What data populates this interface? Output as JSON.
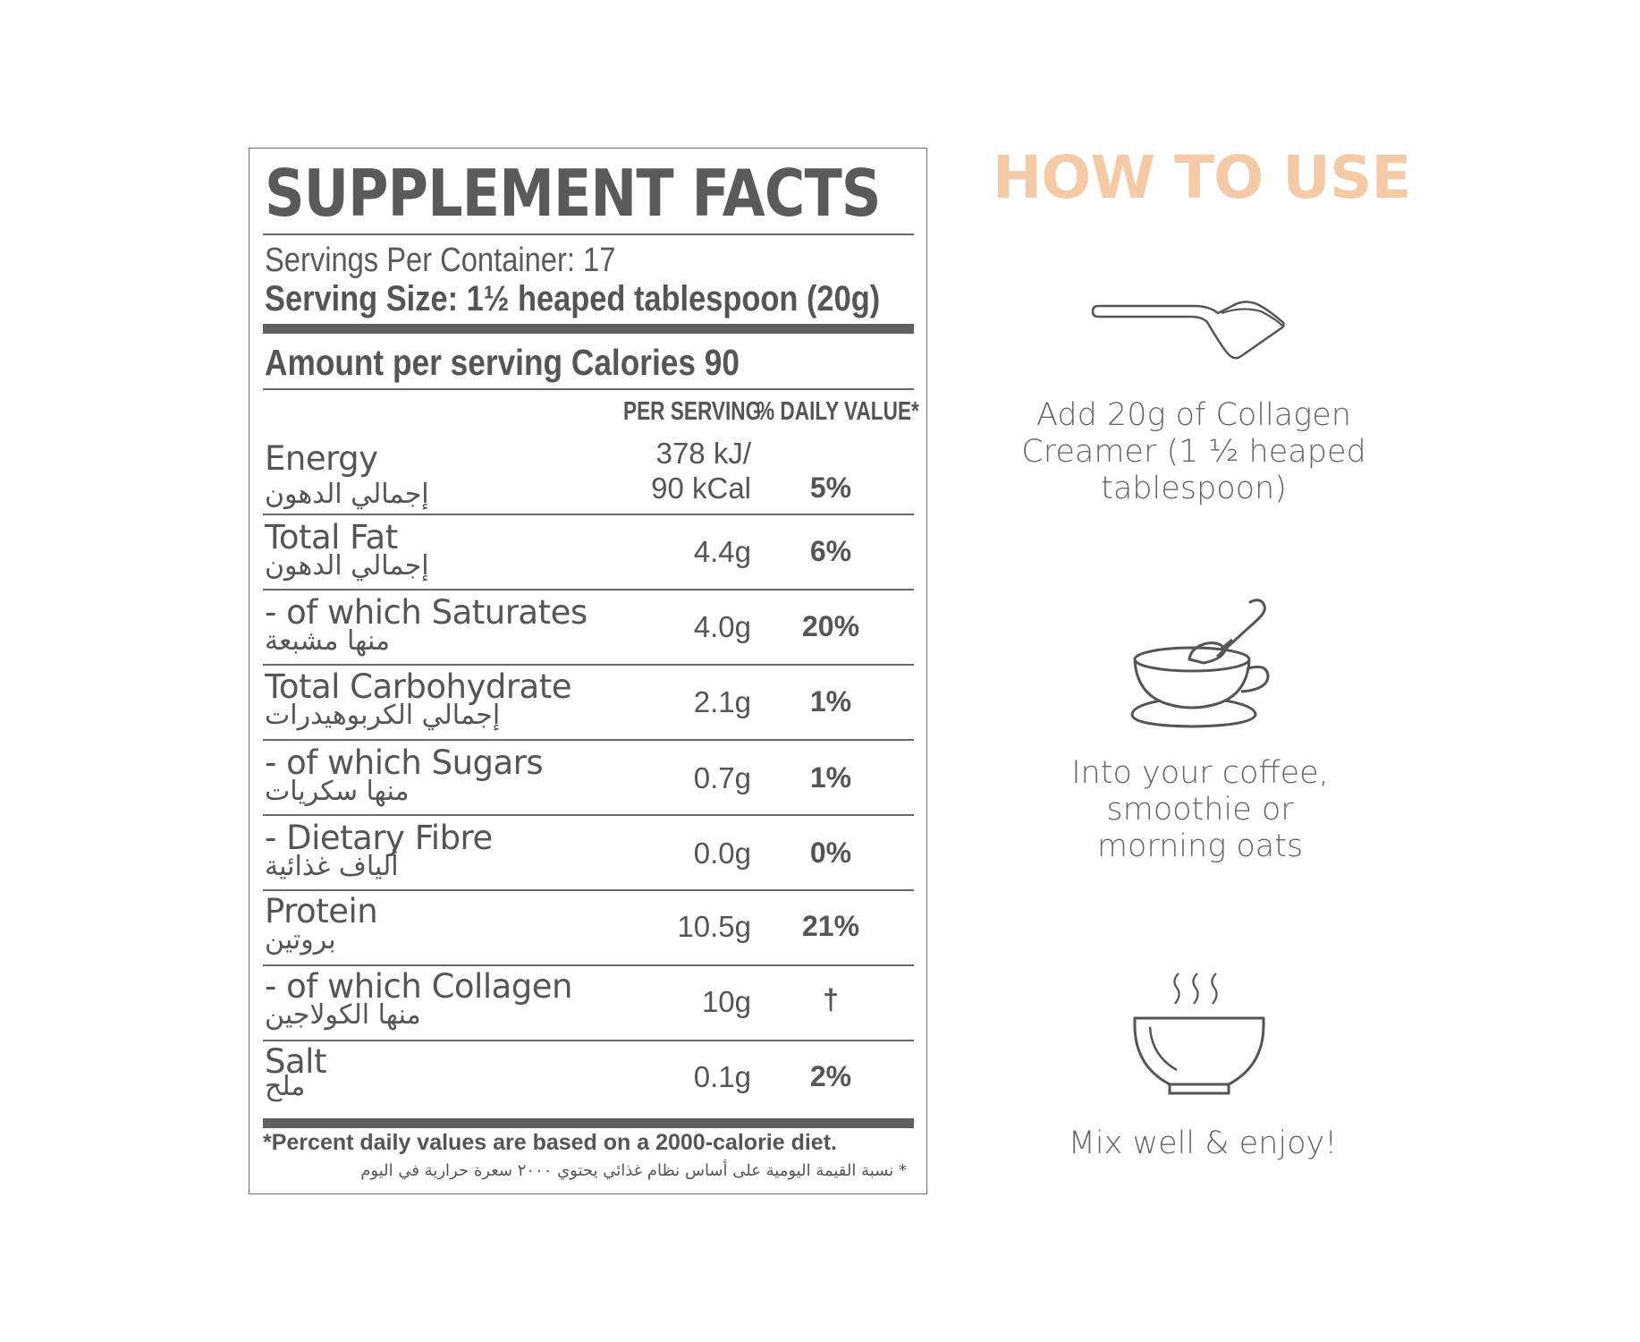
{
  "facts": {
    "title": "SUPPLEMENT FACTS",
    "servings_per_container": "Servings Per Container: 17",
    "serving_size": "Serving Size: 1½ heaped tablespoon (20g)",
    "calories_line": "Amount per serving Calories 90",
    "col_per_serving": "PER SERVING",
    "col_daily_value": "% DAILY VALUE*",
    "rows": [
      {
        "name": "Energy",
        "arabic": "إجمالي الدهون",
        "amount_line1": "378 kJ/",
        "amount_line2": "90 kCal",
        "dv": "5%"
      },
      {
        "name": "Total Fat",
        "arabic": "إجمالي الدهون",
        "amount": "4.4g",
        "dv": "6%"
      },
      {
        "name": "- of which Saturates",
        "arabic": "منها مشبعة",
        "amount": "4.0g",
        "dv": "20%"
      },
      {
        "name": "Total Carbohydrate",
        "arabic": "إجمالي الكربوهيدرات",
        "amount": "2.1g",
        "dv": "1%"
      },
      {
        "name": "- of which Sugars",
        "arabic": "منها سكريات",
        "amount": "0.7g",
        "dv": "1%"
      },
      {
        "name": "- Dietary Fibre",
        "arabic": "ألياف غذائية",
        "amount": "0.0g",
        "dv": "0%"
      },
      {
        "name": "Protein",
        "arabic": "بروتين",
        "amount": "10.5g",
        "dv": "21%"
      },
      {
        "name": "- of which Collagen",
        "arabic": "منها الكولاجين",
        "amount": "10g",
        "dv": "†"
      },
      {
        "name": "Salt",
        "arabic": "ملح",
        "amount": "0.1g",
        "dv": "2%"
      }
    ],
    "footnote_en": "*Percent daily values are based on a 2000-calorie diet.",
    "footnote_ar": "* نسبة القيمة اليومية على أساس نظام غذائي يحتوي ٢٠٠٠ سعرة حرارية في اليوم"
  },
  "how_to_use": {
    "title": "HOW TO USE",
    "accent_color": "#f5cba7",
    "steps": [
      {
        "icon": "scoop-icon",
        "lines": [
          "Add 20g of Collagen",
          "Creamer (1 ½ heaped",
          "tablespoon)"
        ]
      },
      {
        "icon": "coffee-cup-icon",
        "lines": [
          "Into your coffee,",
          "smoothie or",
          "morning oats"
        ]
      },
      {
        "icon": "steaming-bowl-icon",
        "lines": [
          "Mix well & enjoy!"
        ]
      }
    ]
  }
}
